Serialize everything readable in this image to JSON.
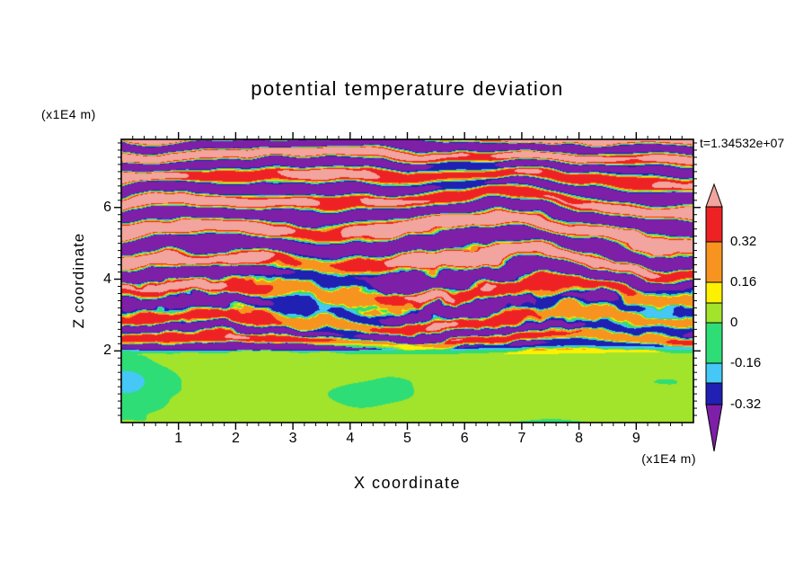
{
  "background": "#ffffff",
  "text_color": "#000000",
  "chart_data": {
    "type": "heatmap",
    "title": "potential temperature deviation",
    "xlabel": "X coordinate",
    "ylabel": "Z coordinate",
    "x_units": "(x1E4 m)",
    "z_units": "(x1E4 m)",
    "time_label": "t=1.34532e+07",
    "x_range": [
      0,
      10
    ],
    "z_range": [
      0,
      7.9
    ],
    "x_ticks": [
      1,
      2,
      3,
      4,
      5,
      6,
      7,
      8,
      9
    ],
    "x_minor_step": 0.2,
    "z_ticks": [
      2,
      4,
      6
    ],
    "z_minor_step": 0.2,
    "grid": false,
    "legend_position": "right-colorbar",
    "palette": {
      "salmon": "#f2a49e",
      "red": "#ee2224",
      "orange": "#f79420",
      "yellow": "#fdf000",
      "chartreuse": "#a2e32b",
      "green": "#2fdd76",
      "cyan": "#45c8f5",
      "navy": "#2020b2",
      "purple": "#7e1fa8"
    },
    "levels": {
      "thresholds": [
        0.4,
        0.32,
        0.16,
        0.08,
        0,
        -0.16,
        -0.24,
        -0.32
      ],
      "colors": [
        "salmon",
        "red",
        "orange",
        "yellow",
        "chartreuse",
        "green",
        "cyan",
        "navy",
        "purple"
      ]
    },
    "colorbar": {
      "labels": [
        "0.32",
        "0.16",
        "0",
        "-0.16",
        "-0.32"
      ],
      "segments": [
        {
          "color": "salmon",
          "arrow": "up"
        },
        {
          "color": "red",
          "label_below": "0.32"
        },
        {
          "color": "orange",
          "label_below": "0.16"
        },
        {
          "color": "yellow"
        },
        {
          "color": "chartreuse",
          "label_below": "0"
        },
        {
          "color": "green",
          "label_below": "-0.16"
        },
        {
          "color": "cyan"
        },
        {
          "color": "navy",
          "label_below": "-0.32"
        },
        {
          "color": "purple",
          "arrow": "down"
        }
      ]
    },
    "field_description": "Stratified gravity-wave field: strongly saturated alternating salmon/purple horizontal wavy bands above z=2 with thin red/orange/yellow/cyan/navy filaments (densest for 2<z<4.5); weak smooth chartreuse/green blobs below z=2 with a navy streak near z=2 and a cyan patch at the lower-left edge."
  }
}
